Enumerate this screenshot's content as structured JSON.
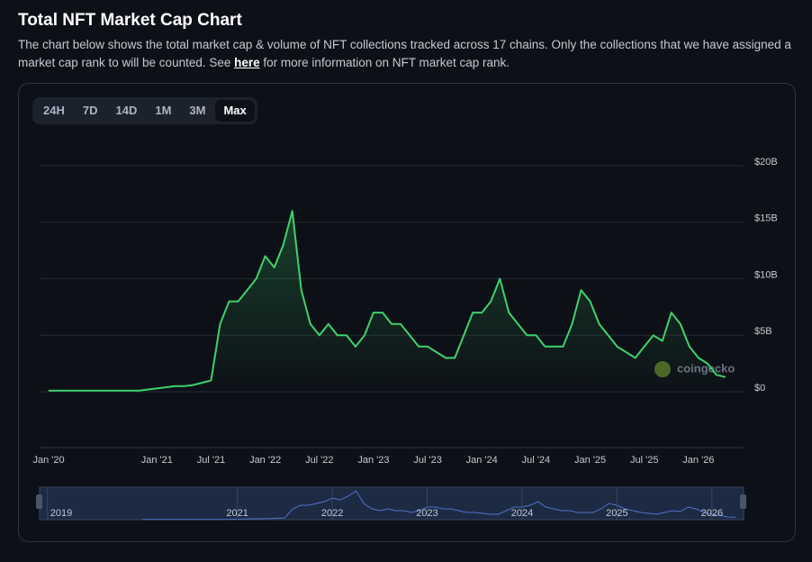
{
  "header": {
    "title": "Total NFT Market Cap Chart",
    "description": {
      "before": "The chart below shows the total market cap & volume of NFT collections tracked across 17 chains. Only the collections that we have assigned a market cap rank to will be counted. See ",
      "link": "here",
      "after": " for more information on NFT market cap rank."
    }
  },
  "range_buttons": {
    "items": [
      "24H",
      "7D",
      "14D",
      "1M",
      "3M",
      "Max"
    ],
    "active": "Max"
  },
  "chart_data": {
    "type": "line",
    "watermark": "coingecko",
    "x": [
      "2020-01",
      "2020-02",
      "2020-03",
      "2020-04",
      "2020-05",
      "2020-06",
      "2020-07",
      "2020-08",
      "2020-09",
      "2020-10",
      "2020-11",
      "2020-12",
      "2021-01",
      "2021-02",
      "2021-03",
      "2021-04",
      "2021-05",
      "2021-06",
      "2021-07",
      "2021-08",
      "2021-09",
      "2021-10",
      "2021-11",
      "2021-12",
      "2022-01",
      "2022-02",
      "2022-03",
      "2022-04",
      "2022-05",
      "2022-06",
      "2022-07",
      "2022-08",
      "2022-09",
      "2022-10",
      "2022-11",
      "2022-12",
      "2023-01",
      "2023-02",
      "2023-03",
      "2023-04",
      "2023-05",
      "2023-06",
      "2023-07",
      "2023-08",
      "2023-09",
      "2023-10",
      "2023-11",
      "2023-12",
      "2024-01",
      "2024-02",
      "2024-03",
      "2024-04",
      "2024-05",
      "2024-06",
      "2024-07",
      "2024-08",
      "2024-09",
      "2024-10",
      "2024-11",
      "2024-12",
      "2025-01",
      "2025-02",
      "2025-03",
      "2025-04",
      "2025-05",
      "2025-06",
      "2025-07",
      "2025-08",
      "2025-09",
      "2025-10",
      "2025-11",
      "2025-12",
      "2026-01",
      "2026-02",
      "2026-03",
      "2026-04"
    ],
    "series": [
      {
        "name": "Market Cap",
        "color": "#3fd16b",
        "values": [
          0.1,
          0.1,
          0.1,
          0.1,
          0.1,
          0.1,
          0.1,
          0.1,
          0.1,
          0.1,
          0.1,
          0.2,
          0.3,
          0.4,
          0.5,
          0.5,
          0.6,
          0.8,
          1,
          6,
          8,
          8,
          9,
          10,
          12,
          11,
          13,
          16,
          9,
          6,
          5,
          6,
          5,
          5,
          4,
          5,
          7,
          7,
          6,
          6,
          5,
          4,
          4,
          3.5,
          3,
          3,
          5,
          7,
          7,
          8,
          10,
          7,
          6,
          5,
          5,
          4,
          4,
          4,
          6,
          9,
          8,
          6,
          5,
          4,
          3.5,
          3,
          4,
          5,
          4.5,
          7,
          6,
          4,
          3,
          2.5,
          1.5,
          1.3
        ]
      }
    ],
    "xlim": [
      "2019-12",
      "2026-06"
    ],
    "xticks": [
      {
        "value": "2020-01",
        "label": "Jan '20"
      },
      {
        "value": "2021-01",
        "label": "Jan '21"
      },
      {
        "value": "2021-07",
        "label": "Jul '21"
      },
      {
        "value": "2022-01",
        "label": "Jan '22"
      },
      {
        "value": "2022-07",
        "label": "Jul '22"
      },
      {
        "value": "2023-01",
        "label": "Jan '23"
      },
      {
        "value": "2023-07",
        "label": "Jul '23"
      },
      {
        "value": "2024-01",
        "label": "Jan '24"
      },
      {
        "value": "2024-07",
        "label": "Jul '24"
      },
      {
        "value": "2025-01",
        "label": "Jan '25"
      },
      {
        "value": "2025-07",
        "label": "Jul '25"
      },
      {
        "value": "2026-01",
        "label": "Jan '26"
      }
    ],
    "ylim": [
      0,
      20
    ],
    "yticks": [
      {
        "value": 0,
        "label": "$0"
      },
      {
        "value": 5,
        "label": "$5B"
      },
      {
        "value": 10,
        "label": "$10B"
      },
      {
        "value": 15,
        "label": "$15B"
      },
      {
        "value": 20,
        "label": "$20B"
      }
    ],
    "grid": true,
    "navigator": {
      "xlim": [
        "2018-12",
        "2026-05"
      ],
      "xticks": [
        {
          "value": "2019-01",
          "label": "2019"
        },
        {
          "value": "2021-01",
          "label": "2021"
        },
        {
          "value": "2022-01",
          "label": "2022"
        },
        {
          "value": "2023-01",
          "label": "2023"
        },
        {
          "value": "2024-01",
          "label": "2024"
        },
        {
          "value": "2025-01",
          "label": "2025"
        },
        {
          "value": "2026-01",
          "label": "2026"
        }
      ]
    }
  }
}
